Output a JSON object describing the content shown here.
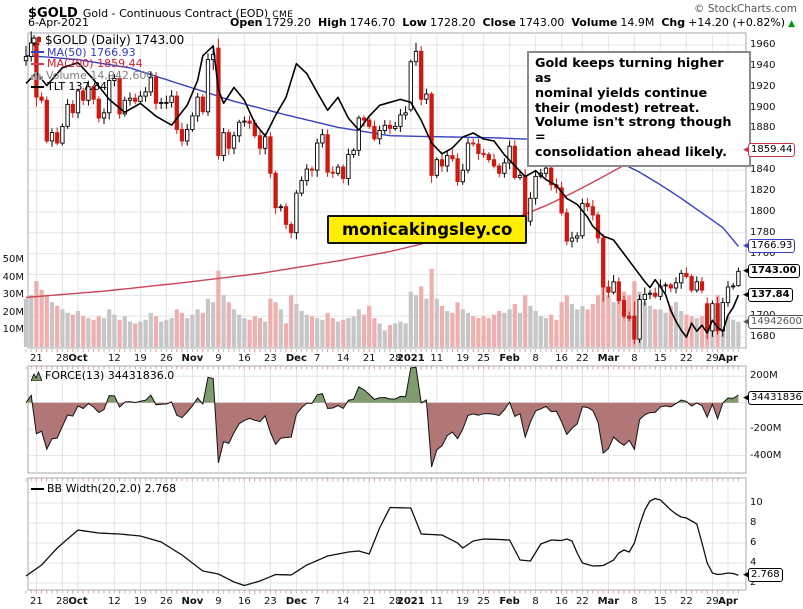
{
  "header": {
    "symbol": "$GOLD",
    "name": "Gold - Continuous Contract (EOD)",
    "exchange": "CME",
    "credit": "© StockCharts.com",
    "date": "6-Apr-2021",
    "quote": [
      [
        "Open",
        "1729.20"
      ],
      [
        "High",
        "1746.70"
      ],
      [
        "Low",
        "1728.20"
      ],
      [
        "Close",
        "1743.00"
      ],
      [
        "Volume",
        "14.9M"
      ],
      [
        "Chg",
        "+14.20 (+0.82%)"
      ]
    ],
    "chg_direction": "up"
  },
  "main_legend": {
    "title": "$GOLD (Daily) 1743.00",
    "ma50": "MA(50) 1766.93",
    "ma200": "MA(200) 1859.44",
    "volume": "Volume 14,942,600",
    "tlt": "TLT 137.84"
  },
  "force_legend": "FORCE(13) 34431836.0",
  "bb_legend": "BB Width(20,2.0) 2.768",
  "annotation": "Gold keeps turning higher as\nnominal yields continue\ntheir (modest) retreat.\nVolume isn't strong though =\nconsolidation ahead likely.",
  "watermark": "monicakingsley.co",
  "colors": {
    "candle_down": "#cc1a10",
    "candle_up_fill": "#ffffff",
    "candle_up_stroke": "#000000",
    "ma50": "#3940bf",
    "ma200": "#cc4455",
    "tlt": "#000000",
    "vol_down": "#efafaf",
    "vol_up": "#c6c6c6",
    "force_pos": "#7e9c6e",
    "force_neg": "#b17676",
    "grid": "#e4e4e4",
    "panel_border": "#a9a9a9",
    "watermark_bg": "#ffee00",
    "chg_up": "#009900"
  },
  "price_labels": [
    {
      "text": "1859.44",
      "scale": "price",
      "value": 1859.44,
      "color": "#cc3344",
      "bold": false
    },
    {
      "text": "1766.93",
      "scale": "price",
      "value": 1766.93,
      "color": "#3940bf",
      "bold": false
    },
    {
      "text": "1743.00",
      "scale": "price",
      "value": 1743.0,
      "color": "#000000",
      "bold": true
    },
    {
      "text": "137.84",
      "scale": "tlt",
      "value": 137.84,
      "color": "#000000",
      "bold": true
    },
    {
      "text": "14942600",
      "scale": "volume",
      "value": 14.9426,
      "color": "#555555",
      "bold": false
    },
    {
      "text": "34431836",
      "scale": "force",
      "value": 34431836,
      "color": "#000000",
      "bold": false
    },
    {
      "text": "2.768",
      "scale": "bb",
      "value": 2.768,
      "color": "#000000",
      "bold": false
    }
  ],
  "chart_data": {
    "type": "candlestick",
    "title": "$GOLD Gold - Continuous Contract (EOD) CME, Daily, ending 6-Apr-2021",
    "bars": 138,
    "price_axis": {
      "min": 1669.5,
      "max": 1971.5,
      "ticks": [
        1960,
        1940,
        1920,
        1900,
        1880,
        1860,
        1840,
        1820,
        1800,
        1780,
        1760,
        1740,
        1720,
        1700,
        1680
      ]
    },
    "volume_axis": {
      "ticks": [
        [
          50,
          "50M"
        ],
        [
          40,
          "40M"
        ],
        [
          30,
          "30M"
        ],
        [
          20,
          "20M"
        ],
        [
          10,
          "10M"
        ]
      ]
    },
    "tlt_axis": {
      "min": 132.5,
      "max": 164.3
    },
    "force_axis": {
      "min": -531000000,
      "max": 277000000,
      "ticks": [
        [
          200000000,
          "200M"
        ],
        [
          0,
          ""
        ],
        [
          -200000000,
          "-200M"
        ],
        [
          -400000000,
          "-400M"
        ]
      ],
      "ema_period": 13
    },
    "bb_axis": {
      "min": 1.3,
      "max": 12.5,
      "ticks": [
        10,
        8,
        6,
        4,
        2
      ]
    },
    "x_ticks": [
      [
        2,
        "21",
        0
      ],
      [
        7,
        "28",
        0
      ],
      [
        10,
        "Oct",
        1
      ],
      [
        17,
        "12",
        0
      ],
      [
        22,
        "19",
        0
      ],
      [
        27,
        "26",
        0
      ],
      [
        32,
        "Nov",
        1
      ],
      [
        37,
        "9",
        0
      ],
      [
        42,
        "16",
        0
      ],
      [
        47,
        "23",
        0
      ],
      [
        52,
        "Dec",
        1
      ],
      [
        56,
        "7",
        0
      ],
      [
        61,
        "14",
        0
      ],
      [
        66,
        "21",
        0
      ],
      [
        71,
        "28",
        0
      ],
      [
        74,
        "2021",
        1
      ],
      [
        79,
        "11",
        0
      ],
      [
        84,
        "19",
        0
      ],
      [
        88,
        "25",
        0
      ],
      [
        93,
        "Feb",
        1
      ],
      [
        98,
        "8",
        0
      ],
      [
        103,
        "16",
        0
      ],
      [
        107,
        "22",
        0
      ],
      [
        112,
        "Mar",
        1
      ],
      [
        117,
        "8",
        0
      ],
      [
        122,
        "15",
        0
      ],
      [
        127,
        "22",
        0
      ],
      [
        132,
        "29",
        0
      ],
      [
        135,
        "Apr",
        1
      ]
    ],
    "closes": [
      1949,
      1962,
      1910,
      1907,
      1868,
      1876,
      1866,
      1882,
      1903,
      1895,
      1916,
      1907,
      1920,
      1908,
      1890,
      1895,
      1926,
      1928,
      1894,
      1907,
      1909,
      1906,
      1911,
      1915,
      1929,
      1904,
      1905,
      1905,
      1911,
      1879,
      1868,
      1879,
      1892,
      1910,
      1896,
      1946,
      1951,
      1854,
      1876,
      1861,
      1873,
      1886,
      1887,
      1885,
      1873,
      1861,
      1872,
      1837,
      1804,
      1805,
      1788,
      1780,
      1818,
      1830,
      1841,
      1840,
      1866,
      1874,
      1838,
      1837,
      1843,
      1832,
      1855,
      1859,
      1890,
      1888,
      1882,
      1870,
      1878,
      1883,
      1880,
      1882,
      1893,
      1895,
      1944,
      1954,
      1908,
      1913,
      1835,
      1850,
      1844,
      1854,
      1851,
      1829,
      1840,
      1866,
      1865,
      1856,
      1855,
      1850,
      1844,
      1837,
      1847,
      1863,
      1833,
      1835,
      1791,
      1813,
      1834,
      1837,
      1842,
      1826,
      1823,
      1799,
      1772,
      1775,
      1777,
      1808,
      1805,
      1797,
      1775,
      1728,
      1723,
      1733,
      1715,
      1700,
      1698,
      1678,
      1716,
      1721,
      1722,
      1719,
      1729,
      1730,
      1727,
      1732,
      1741,
      1738,
      1725,
      1733,
      1725,
      1732,
      1712,
      1686,
      1713,
      1728,
      1729,
      1743
    ],
    "volumes_m": [
      28,
      30,
      38,
      33,
      30,
      26,
      24,
      22,
      20,
      19,
      21,
      18,
      17,
      16,
      18,
      17,
      22,
      19,
      16,
      18,
      15,
      14,
      15,
      16,
      20,
      18,
      15,
      16,
      17,
      22,
      20,
      17,
      19,
      22,
      20,
      28,
      26,
      44,
      30,
      26,
      22,
      19,
      17,
      16,
      18,
      17,
      15,
      28,
      26,
      22,
      14,
      30,
      25,
      21,
      19,
      18,
      17,
      16,
      20,
      17,
      15,
      16,
      17,
      18,
      22,
      19,
      24,
      17,
      14,
      10,
      13,
      14,
      15,
      14,
      32,
      30,
      35,
      28,
      45,
      28,
      24,
      21,
      20,
      26,
      22,
      20,
      18,
      17,
      18,
      17,
      19,
      21,
      20,
      22,
      25,
      20,
      30,
      24,
      21,
      18,
      17,
      19,
      16,
      26,
      30,
      25,
      22,
      24,
      22,
      25,
      30,
      38,
      30,
      26,
      28,
      32,
      30,
      38,
      32,
      26,
      24,
      22,
      22,
      20,
      24,
      26,
      21,
      19,
      18,
      17,
      18,
      16,
      22,
      30,
      26,
      18,
      16,
      14.9
    ],
    "ohlc_overrides": {
      "0": [
        1945,
        1959,
        1940,
        1949
      ],
      "1": [
        1949,
        1973,
        1944,
        1962
      ],
      "2": [
        1962,
        1963,
        1901,
        1910
      ],
      "35": [
        1896,
        1952,
        1892,
        1946
      ],
      "36": [
        1946,
        1960,
        1936,
        1951
      ],
      "37": [
        1957,
        1966,
        1850,
        1854
      ],
      "74": [
        1898,
        1946,
        1896,
        1944
      ],
      "75": [
        1944,
        1962,
        1940,
        1954
      ],
      "76": [
        1954,
        1959,
        1902,
        1908
      ],
      "78": [
        1913,
        1915,
        1828,
        1835
      ],
      "111": [
        1775,
        1779,
        1714,
        1728
      ],
      "117": [
        1700,
        1714,
        1673,
        1678
      ],
      "131": [
        1712,
        1718,
        1678,
        1686
      ],
      "137": [
        1729.2,
        1746.7,
        1728.2,
        1743
      ]
    },
    "ma50_points": [
      [
        0,
        1950
      ],
      [
        10,
        1946
      ],
      [
        20,
        1938
      ],
      [
        30,
        1922
      ],
      [
        40,
        1906
      ],
      [
        50,
        1893
      ],
      [
        60,
        1881
      ],
      [
        70,
        1873
      ],
      [
        80,
        1872
      ],
      [
        90,
        1871
      ],
      [
        100,
        1869
      ],
      [
        105,
        1866
      ],
      [
        110,
        1858
      ],
      [
        114,
        1848
      ],
      [
        118,
        1838
      ],
      [
        122,
        1826
      ],
      [
        126,
        1813
      ],
      [
        130,
        1799
      ],
      [
        134,
        1785
      ],
      [
        137,
        1766.93
      ]
    ],
    "ma200_points": [
      [
        0,
        1718
      ],
      [
        15,
        1724
      ],
      [
        30,
        1732
      ],
      [
        45,
        1741
      ],
      [
        60,
        1753
      ],
      [
        70,
        1762
      ],
      [
        80,
        1774
      ],
      [
        90,
        1787
      ],
      [
        95,
        1796
      ],
      [
        100,
        1806
      ],
      [
        105,
        1818
      ],
      [
        110,
        1831
      ],
      [
        114,
        1842
      ],
      [
        118,
        1852
      ],
      [
        122,
        1858
      ],
      [
        126,
        1860
      ],
      [
        130,
        1861
      ],
      [
        134,
        1860.5
      ],
      [
        137,
        1859.44
      ]
    ],
    "tlt_points": [
      [
        0,
        159.2
      ],
      [
        2,
        160.3
      ],
      [
        4,
        159.0
      ],
      [
        7,
        160.8
      ],
      [
        10,
        161.3
      ],
      [
        13,
        159.6
      ],
      [
        16,
        157.6
      ],
      [
        19,
        156.3
      ],
      [
        22,
        157.2
      ],
      [
        25,
        155.9
      ],
      [
        28,
        155.0
      ],
      [
        31,
        157.0
      ],
      [
        33,
        159.5
      ],
      [
        34,
        162.0
      ],
      [
        36,
        163.0
      ],
      [
        37,
        158.6
      ],
      [
        38,
        157.2
      ],
      [
        40,
        158.8
      ],
      [
        42,
        157.5
      ],
      [
        44,
        155.2
      ],
      [
        46,
        153.9
      ],
      [
        48,
        156.0
      ],
      [
        50,
        157.8
      ],
      [
        52,
        161.2
      ],
      [
        54,
        160.2
      ],
      [
        56,
        158.3
      ],
      [
        58,
        156.5
      ],
      [
        60,
        157.8
      ],
      [
        62,
        155.7
      ],
      [
        64,
        154.5
      ],
      [
        66,
        155.9
      ],
      [
        68,
        157.0
      ],
      [
        72,
        157.6
      ],
      [
        74,
        157.3
      ],
      [
        76,
        155.5
      ],
      [
        78,
        153.2
      ],
      [
        80,
        152.1
      ],
      [
        82,
        152.7
      ],
      [
        84,
        153.8
      ],
      [
        86,
        154.2
      ],
      [
        88,
        153.6
      ],
      [
        90,
        153.4
      ],
      [
        92,
        152.0
      ],
      [
        94,
        150.9
      ],
      [
        96,
        149.8
      ],
      [
        98,
        150.4
      ],
      [
        100,
        149.5
      ],
      [
        102,
        148.9
      ],
      [
        104,
        147.6
      ],
      [
        106,
        147.0
      ],
      [
        108,
        145.7
      ],
      [
        109,
        144.8
      ],
      [
        111,
        143.8
      ],
      [
        113,
        143.4
      ],
      [
        115,
        142.0
      ],
      [
        117,
        140.6
      ],
      [
        119,
        139.2
      ],
      [
        120,
        138.6
      ],
      [
        121,
        139.4
      ],
      [
        123,
        137.9
      ],
      [
        124,
        136.3
      ],
      [
        125,
        135.2
      ],
      [
        126,
        134.3
      ],
      [
        127,
        133.6
      ],
      [
        128,
        135.0
      ],
      [
        129,
        134.2
      ],
      [
        130,
        134.8
      ],
      [
        131,
        134.0
      ],
      [
        132,
        135.3
      ],
      [
        133,
        134.6
      ],
      [
        134,
        134.2
      ],
      [
        135,
        135.8
      ],
      [
        136,
        136.6
      ],
      [
        137,
        137.84
      ]
    ],
    "bb_points": [
      [
        0,
        2.7
      ],
      [
        3,
        3.8
      ],
      [
        6,
        5.5
      ],
      [
        10,
        7.3
      ],
      [
        14,
        7.0
      ],
      [
        18,
        6.9
      ],
      [
        22,
        6.7
      ],
      [
        26,
        6.1
      ],
      [
        30,
        4.8
      ],
      [
        34,
        3.2
      ],
      [
        37,
        2.9
      ],
      [
        40,
        2.1
      ],
      [
        42,
        1.75
      ],
      [
        45,
        2.2
      ],
      [
        48,
        2.85
      ],
      [
        51,
        2.8
      ],
      [
        54,
        3.8
      ],
      [
        58,
        4.7
      ],
      [
        62,
        5.1
      ],
      [
        64,
        5.2
      ],
      [
        66,
        4.9
      ],
      [
        68,
        7.5
      ],
      [
        70,
        9.55
      ],
      [
        74,
        9.5
      ],
      [
        76,
        6.9
      ],
      [
        80,
        6.8
      ],
      [
        83,
        6.0
      ],
      [
        84,
        5.5
      ],
      [
        86,
        6.2
      ],
      [
        88,
        6.4
      ],
      [
        91,
        6.35
      ],
      [
        93,
        6.3
      ],
      [
        95,
        4.3
      ],
      [
        97,
        4.2
      ],
      [
        99,
        5.9
      ],
      [
        101,
        6.3
      ],
      [
        103,
        6.25
      ],
      [
        104,
        6.4
      ],
      [
        105,
        6.2
      ],
      [
        106,
        5.0
      ],
      [
        107,
        4.0
      ],
      [
        109,
        3.7
      ],
      [
        111,
        3.75
      ],
      [
        113,
        4.3
      ],
      [
        114,
        5.0
      ],
      [
        115,
        5.3
      ],
      [
        116,
        5.1
      ],
      [
        117,
        6.0
      ],
      [
        118,
        7.8
      ],
      [
        119,
        9.3
      ],
      [
        120,
        10.2
      ],
      [
        121,
        10.45
      ],
      [
        122,
        10.3
      ],
      [
        123,
        9.8
      ],
      [
        124,
        9.3
      ],
      [
        125,
        8.9
      ],
      [
        126,
        8.6
      ],
      [
        127,
        8.5
      ],
      [
        128,
        8.2
      ],
      [
        129,
        7.9
      ],
      [
        130,
        6.0
      ],
      [
        131,
        4.0
      ],
      [
        132,
        3.0
      ],
      [
        133,
        2.85
      ],
      [
        134,
        2.9
      ],
      [
        135,
        3.0
      ],
      [
        136,
        2.95
      ],
      [
        137,
        2.768
      ]
    ]
  }
}
